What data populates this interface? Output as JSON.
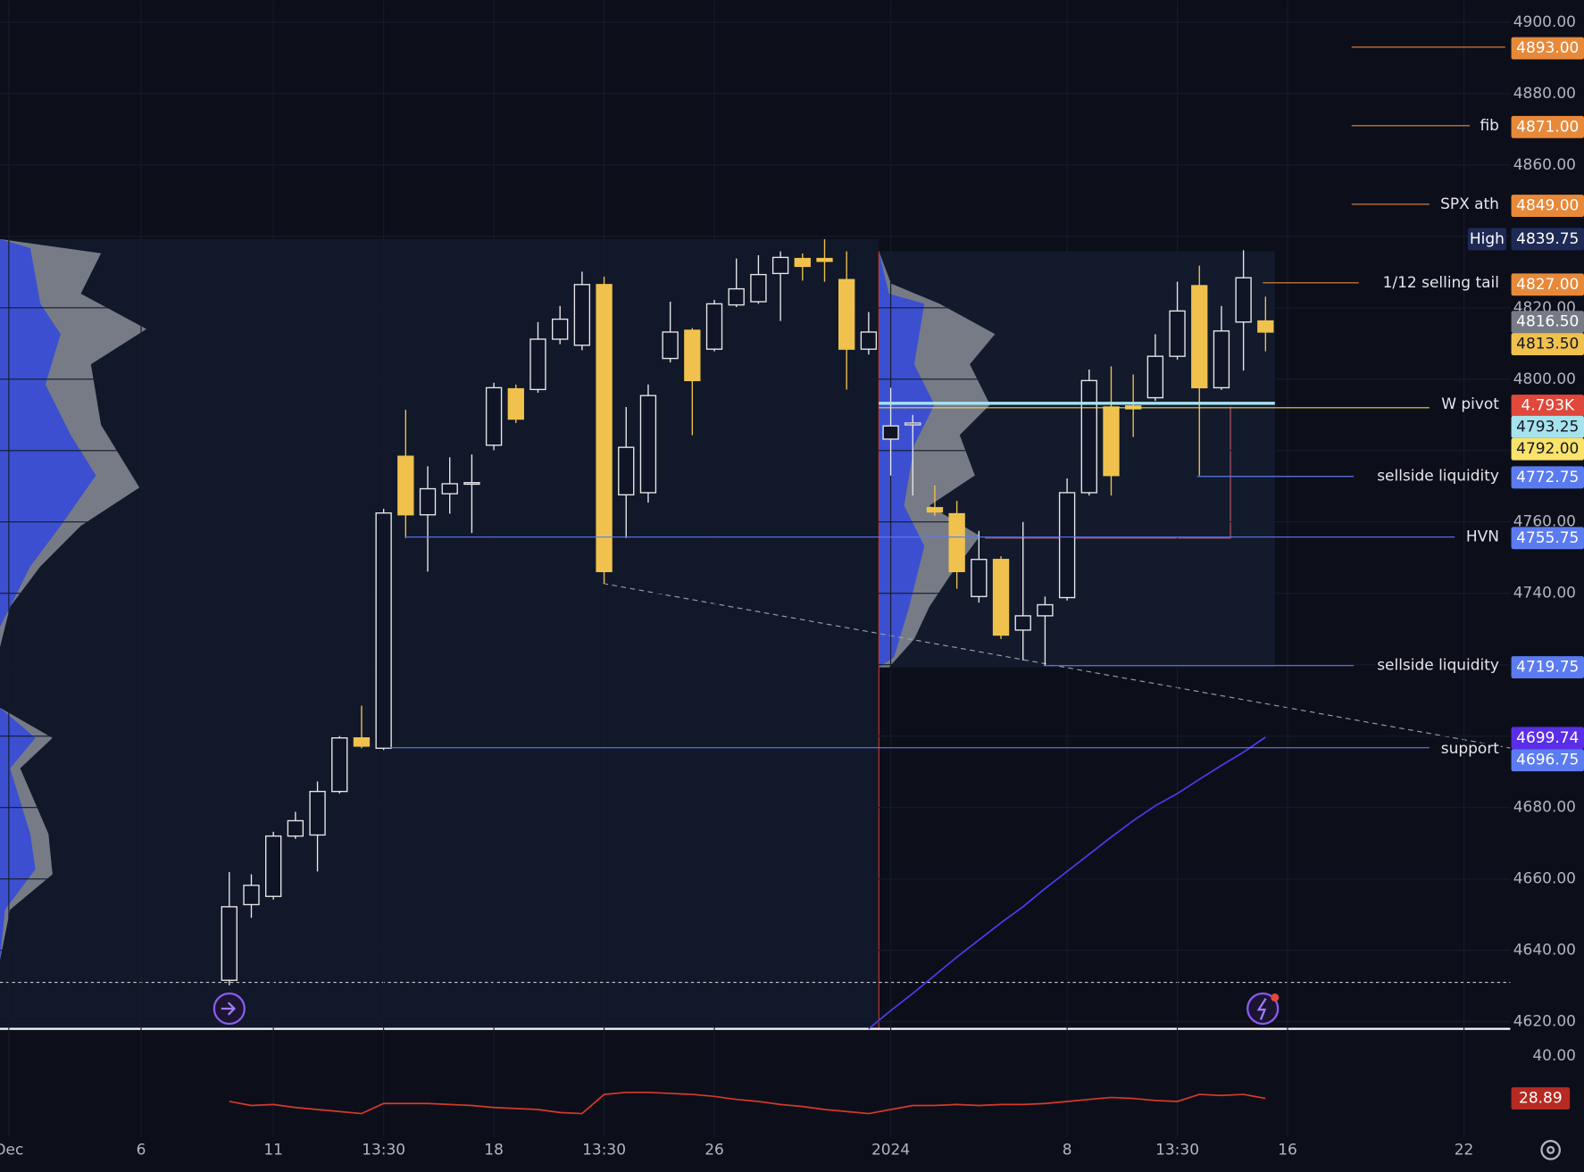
{
  "chart_data": [
    {
      "type": "candlestick",
      "ylim": [
        4618,
        4906
      ],
      "yticks": [
        {
          "value": 4620,
          "label": "4620.00"
        },
        {
          "value": 4640,
          "label": "4640.00"
        },
        {
          "value": 4660,
          "label": "4660.00"
        },
        {
          "value": 4680,
          "label": "4680.00"
        },
        {
          "value": 4700,
          "label": "4700.00"
        },
        {
          "value": 4720,
          "label": "4720.00"
        },
        {
          "value": 4740,
          "label": "4740.00"
        },
        {
          "value": 4760,
          "label": "4760.00"
        },
        {
          "value": 4780,
          "label": "4780.00"
        },
        {
          "value": 4800,
          "label": "4800.00"
        },
        {
          "value": 4820,
          "label": "4820.00"
        },
        {
          "value": 4840,
          "label": "4840.00"
        },
        {
          "value": 4860,
          "label": "4860.00"
        },
        {
          "value": 4880,
          "label": "4880.00"
        },
        {
          "value": 4900,
          "label": "4900.00"
        }
      ],
      "xlim": [
        -10.4,
        58.1
      ],
      "xticks": [
        {
          "value": -10,
          "label": "Dec"
        },
        {
          "value": -4,
          "label": "6"
        },
        {
          "value": 2,
          "label": "11"
        },
        {
          "value": 7,
          "label": "13:30"
        },
        {
          "value": 12,
          "label": "18"
        },
        {
          "value": 17,
          "label": "13:30"
        },
        {
          "value": 22,
          "label": "26"
        },
        {
          "value": 30,
          "label": "2024"
        },
        {
          "value": 38,
          "label": "8"
        },
        {
          "value": 43,
          "label": "13:30"
        },
        {
          "value": 48,
          "label": "16"
        },
        {
          "value": 56,
          "label": "22"
        }
      ],
      "open": [
        4631.6,
        4652.8,
        4655.1,
        4672.0,
        4672.3,
        4684.5,
        4699.5,
        4696.6,
        4778.4,
        4762.0,
        4767.9,
        4770.7,
        4781.5,
        4797.3,
        4797.1,
        4811.2,
        4809.5,
        4826.5,
        4767.6,
        4768.2,
        4805.8,
        4813.7,
        4808.4,
        4820.8,
        4821.7,
        4829.6,
        4833.8,
        4833.8,
        4827.9,
        4808.4,
        4783.2,
        4787.2,
        4764.0,
        4762.3,
        4739.1,
        4749.5,
        4729.7,
        4733.7,
        4738.8,
        4768.2,
        4792.2,
        4792.5,
        4794.8,
        4806.4,
        4826.2,
        4797.6,
        4816.0,
        4816.3
      ],
      "high": [
        4661.9,
        4661.3,
        4673.2,
        4678.8,
        4687.3,
        4700.0,
        4708.5,
        4763.7,
        4791.4,
        4775.6,
        4778.1,
        4778.9,
        4799.0,
        4798.5,
        4816.0,
        4820.5,
        4830.1,
        4828.7,
        4792.2,
        4798.5,
        4821.7,
        4814.3,
        4822.2,
        4833.8,
        4834.7,
        4835.8,
        4835.2,
        4839.2,
        4835.8,
        4818.8,
        4797.6,
        4790.0,
        4770.2,
        4765.9,
        4757.5,
        4750.4,
        4760.0,
        4739.1,
        4772.2,
        4802.7,
        4803.6,
        4801.3,
        4812.6,
        4827.3,
        4831.8,
        4820.5,
        4836.1,
        4823.1
      ],
      "low": [
        4630.2,
        4649.1,
        4654.2,
        4671.2,
        4662.1,
        4683.9,
        4696.6,
        4696.1,
        4755.5,
        4746.1,
        4762.3,
        4756.9,
        4780.1,
        4787.7,
        4796.2,
        4809.8,
        4808.1,
        4742.7,
        4755.5,
        4765.4,
        4804.7,
        4784.3,
        4807.8,
        4820.2,
        4821.1,
        4816.3,
        4827.6,
        4827.3,
        4797.1,
        4806.9,
        4773.0,
        4767.4,
        4761.7,
        4741.3,
        4737.4,
        4727.2,
        4721.2,
        4719.8,
        4738.0,
        4767.4,
        4767.4,
        4783.8,
        4793.9,
        4805.5,
        4773.0,
        4797.0,
        4802.4,
        4807.8
      ],
      "close": [
        4652.2,
        4658.2,
        4672.0,
        4676.3,
        4684.5,
        4699.5,
        4697.2,
        4762.5,
        4762.0,
        4769.3,
        4770.7,
        4771.0,
        4797.6,
        4788.8,
        4811.2,
        4816.8,
        4826.5,
        4746.1,
        4780.9,
        4795.4,
        4813.2,
        4799.6,
        4821.1,
        4825.3,
        4829.3,
        4834.1,
        4831.6,
        4833.0,
        4808.4,
        4813.2,
        4786.9,
        4787.7,
        4762.8,
        4746.1,
        4749.5,
        4728.3,
        4733.7,
        4736.8,
        4768.2,
        4799.6,
        4773.0,
        4791.7,
        4806.4,
        4819.1,
        4797.6,
        4813.5,
        4828.4,
        4813.2
      ],
      "up_color": "#e8e8e8",
      "down_color": "#f0c24d",
      "ma": {
        "color": "#4a3df0",
        "values": [
          null,
          null,
          null,
          null,
          null,
          null,
          null,
          null,
          null,
          null,
          null,
          null,
          null,
          null,
          null,
          null,
          null,
          null,
          null,
          null,
          null,
          null,
          null,
          null,
          null,
          null,
          null,
          null,
          null,
          4618.0,
          4623.1,
          4627.9,
          4633.0,
          4638.1,
          4642.9,
          4647.7,
          4652.2,
          4657.3,
          4662.1,
          4666.9,
          4671.7,
          4676.3,
          4680.5,
          4683.9,
          4687.9,
          4691.8,
          4695.5,
          4699.7
        ]
      },
      "levels": [
        {
          "value": 4893,
          "label": "4893.00",
          "color": "#e8893a"
        },
        {
          "value": 4871,
          "label": "4871.00",
          "color": "#e8893a",
          "text": "fib"
        },
        {
          "value": 4849,
          "label": "4849.00",
          "color": "#e8893a",
          "text": "SPX ath"
        },
        {
          "value": 4839.75,
          "label": "4839.75",
          "color": "#1e2a55",
          "text": "High"
        },
        {
          "value": 4827,
          "label": "4827.00",
          "color": "#e8893a",
          "text": "1/12 selling tail"
        },
        {
          "value": 4816.5,
          "label": "4816.50",
          "color": "#787b86"
        },
        {
          "value": 4813.5,
          "label": "4813.50",
          "color": "#f0c24d"
        },
        {
          "value": 4793,
          "label": "4.793K",
          "color": "#e0483c",
          "text": "W pivot"
        },
        {
          "value": 4793.25,
          "label": "4793.25",
          "color": "#a6e3ed"
        },
        {
          "value": 4792,
          "label": "4792.00",
          "color": "#fbe26a"
        },
        {
          "value": 4772.75,
          "label": "4772.75",
          "color": "#5b7bf0",
          "text": "sellside liquidity"
        },
        {
          "value": 4755.75,
          "label": "4755.75",
          "color": "#5b7bf0",
          "text": "HVN"
        },
        {
          "value": 4719.75,
          "label": "4719.75",
          "color": "#5b7bf0",
          "text": "sellside liquidity"
        },
        {
          "value": 4699.74,
          "label": "4699.74",
          "color": "#5a2ee8"
        },
        {
          "value": 4696.75,
          "label": "4696.75",
          "color": "#5b7bf0",
          "text": "support"
        }
      ],
      "grid": true
    },
    {
      "type": "line",
      "ylim": [
        18.8,
        46.1
      ],
      "yticks": [
        {
          "value": 40,
          "label": "40.00"
        }
      ],
      "series": [
        {
          "color": "#d8392b",
          "values": [
            28.1,
            27.04,
            27.3,
            26.51,
            25.98,
            25.45,
            24.92,
            27.57,
            27.57,
            27.57,
            27.3,
            27.04,
            26.51,
            26.25,
            25.98,
            25.19,
            24.92,
            29.95,
            30.48,
            30.48,
            30.21,
            29.95,
            29.42,
            28.63,
            28.1,
            27.3,
            26.78,
            25.98,
            25.45,
            24.92,
            25.98,
            27.04,
            27.04,
            27.3,
            27.04,
            27.3,
            27.3,
            27.57,
            28.1,
            28.63,
            29.16,
            28.89,
            28.36,
            28.1,
            29.95,
            29.68,
            29.95,
            28.89
          ]
        }
      ],
      "last": {
        "value": 28.89,
        "label": "28.89"
      }
    }
  ]
}
